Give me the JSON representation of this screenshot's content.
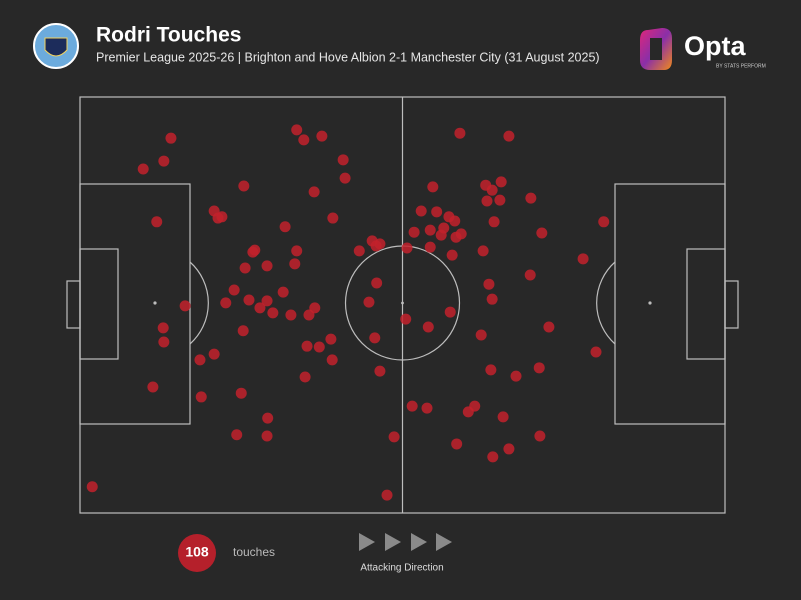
{
  "chart_data": {
    "type": "scatter",
    "title": "Rodri Touches",
    "subtitle": "Premier League 2025-26 | Brighton and Hove Albion 2-1 Manchester City (31 August 2025)",
    "xlim": [
      0,
      100
    ],
    "ylim": [
      0,
      100
    ],
    "color": "#c2212c",
    "x": [
      14.1,
      13.0,
      9.8,
      33.6,
      34.7,
      37.5,
      40.8,
      41.1,
      25.4,
      36.3,
      20.8,
      21.4,
      22.0,
      11.9,
      31.8,
      39.2,
      26.8,
      27.1,
      25.6,
      29.0,
      33.6,
      33.3,
      23.9,
      22.6,
      26.2,
      27.9,
      29.0,
      29.9,
      31.5,
      32.7,
      35.5,
      36.4,
      16.3,
      12.9,
      13.0,
      25.3,
      35.2,
      37.1,
      38.9,
      20.8,
      18.6,
      39.1,
      34.9,
      11.3,
      18.8,
      25.0,
      29.1,
      24.3,
      29.0,
      1.9,
      47.6,
      43.3,
      45.3,
      45.9,
      46.5,
      46.0,
      44.8,
      50.7,
      50.5,
      45.7,
      46.5,
      48.7,
      58.9,
      66.5,
      54.7,
      62.9,
      63.9,
      65.3,
      63.1,
      65.1,
      69.9,
      52.9,
      55.3,
      57.2,
      58.1,
      56.4,
      54.3,
      51.8,
      56.0,
      58.3,
      59.1,
      64.2,
      71.6,
      81.2,
      62.5,
      57.7,
      54.3,
      78.0,
      69.8,
      63.4,
      63.9,
      57.4,
      54.0,
      62.2,
      72.7,
      80.0,
      63.7,
      67.6,
      71.2,
      51.5,
      53.8,
      60.2,
      61.2,
      65.6,
      58.4,
      64.0,
      66.5,
      71.3
    ],
    "y": [
      90.1,
      84.6,
      82.7,
      92.1,
      89.7,
      90.6,
      84.9,
      80.5,
      78.6,
      77.2,
      72.6,
      70.9,
      71.2,
      70.0,
      68.8,
      70.9,
      62.7,
      63.2,
      58.9,
      59.4,
      63.0,
      59.9,
      53.6,
      50.5,
      51.2,
      49.3,
      51.0,
      48.1,
      53.1,
      47.6,
      47.6,
      49.3,
      49.8,
      44.5,
      41.1,
      43.8,
      40.1,
      39.9,
      41.8,
      38.2,
      36.8,
      36.8,
      32.7,
      30.3,
      27.9,
      28.8,
      22.8,
      18.8,
      18.5,
      6.3,
      4.3,
      63.0,
      65.4,
      64.2,
      64.7,
      55.3,
      50.7,
      63.7,
      46.6,
      42.1,
      34.1,
      18.3,
      91.3,
      90.6,
      78.4,
      78.8,
      77.6,
      79.6,
      75.0,
      75.2,
      75.7,
      72.6,
      72.4,
      71.2,
      70.2,
      68.5,
      68.0,
      67.5,
      66.8,
      66.3,
      67.1,
      70.0,
      67.3,
      70.0,
      63.0,
      62.0,
      63.9,
      61.1,
      57.2,
      55.0,
      51.4,
      48.3,
      44.7,
      42.8,
      44.7,
      38.7,
      34.4,
      32.9,
      34.9,
      25.7,
      25.2,
      24.3,
      25.7,
      23.1,
      16.6,
      13.5,
      15.4,
      18.5
    ],
    "count": 108,
    "count_label": "touches",
    "direction_label": "Attacking Direction"
  },
  "brand": {
    "name": "Opta",
    "tagline": "BY STATS PERFORM"
  }
}
